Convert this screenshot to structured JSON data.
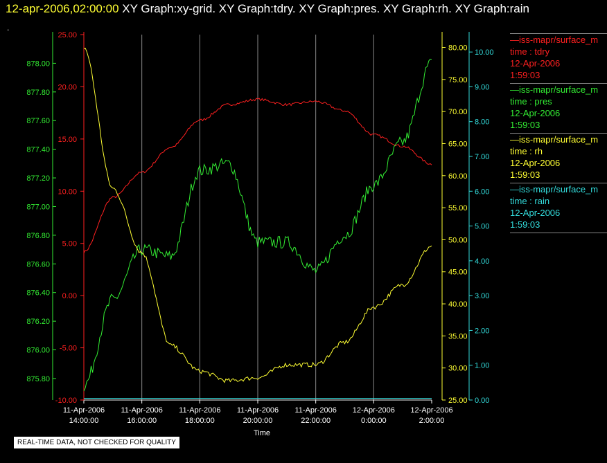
{
  "header": {
    "timestamp": "12-apr-2006,02:00:00",
    "titles": "XY Graph:xy-grid.  XY Graph:tdry.  XY Graph:pres.  XY Graph:rh.  XY Graph:rain",
    "dot": "."
  },
  "disclaimer": "REAL-TIME DATA, NOT CHECKED FOR QUALITY",
  "legend": [
    {
      "name": "iss-mapr/surface_m",
      "line2": "time : tdry",
      "date": "12-Apr-2006",
      "time": "1:59:03",
      "color": "#ff2020"
    },
    {
      "name": "iss-mapr/surface_m",
      "line2": "time : pres",
      "date": "12-Apr-2006",
      "time": "1:59:03",
      "color": "#33ee33"
    },
    {
      "name": "iss-mapr/surface_m",
      "line2": "time : rh",
      "date": "12-Apr-2006",
      "time": "1:59:03",
      "color": "#ffff33"
    },
    {
      "name": "iss-mapr/surface_m",
      "line2": "time : rain",
      "date": "12-Apr-2006",
      "time": "1:59:03",
      "color": "#33dddd"
    }
  ],
  "chart_data": {
    "type": "line",
    "xlabel": "Time",
    "x_range": [
      "11-Apr-2006 14:00:00",
      "12-Apr-2006 2:00:00"
    ],
    "x_ticks": [
      [
        "11-Apr-2006",
        "14:00:00"
      ],
      [
        "11-Apr-2006",
        "16:00:00"
      ],
      [
        "11-Apr-2006",
        "18:00:00"
      ],
      [
        "11-Apr-2006",
        "20:00:00"
      ],
      [
        "11-Apr-2006",
        "22:00:00"
      ],
      [
        "12-Apr-2006",
        "0:00:00"
      ],
      [
        "12-Apr-2006",
        "2:00:00"
      ]
    ],
    "x_hours": [
      0,
      1,
      2,
      3,
      4,
      5,
      6,
      7,
      8,
      9,
      10,
      11,
      12
    ],
    "grid": "vertical",
    "axes": {
      "tdry": {
        "range": [
          -10,
          25
        ],
        "ticks": [
          "-10.00",
          "-5.00",
          "0.00",
          "5.00",
          "10.00",
          "15.00",
          "20.00",
          "25.00"
        ],
        "color": "#ff2020"
      },
      "pres": {
        "range": [
          875.65,
          878.2
        ],
        "ticks": [
          "875.80",
          "876.00",
          "876.20",
          "876.40",
          "876.60",
          "876.80",
          "877.00",
          "877.20",
          "877.40",
          "877.60",
          "877.80",
          "878.00"
        ],
        "color": "#33ee33"
      },
      "rh": {
        "range": [
          25,
          82
        ],
        "ticks": [
          "25.00",
          "30.00",
          "35.00",
          "40.00",
          "45.00",
          "50.00",
          "55.00",
          "60.00",
          "65.00",
          "70.00",
          "75.00",
          "80.00"
        ],
        "color": "#ffff33"
      },
      "rain": {
        "range": [
          0,
          10.5
        ],
        "ticks": [
          "0.00",
          "1.00",
          "2.00",
          "3.00",
          "4.00",
          "5.00",
          "6.00",
          "7.00",
          "8.00",
          "9.00",
          "10.00"
        ],
        "color": "#33dddd"
      }
    },
    "series": [
      {
        "name": "tdry",
        "axis": "tdry",
        "color": "#ff2020",
        "values": [
          4.2,
          9.4,
          11.8,
          14.2,
          16.8,
          18.3,
          18.8,
          18.3,
          18.6,
          17.7,
          15.4,
          14.3,
          12.6
        ]
      },
      {
        "name": "pres",
        "axis": "pres",
        "color": "#33ee33",
        "values": [
          875.75,
          876.35,
          876.7,
          876.65,
          877.25,
          877.3,
          876.75,
          876.75,
          876.55,
          876.8,
          877.15,
          877.45,
          878.0
        ]
      },
      {
        "name": "rh",
        "axis": "rh",
        "color": "#ffff33",
        "values": [
          80.0,
          58.0,
          48.0,
          33.5,
          29.5,
          28.0,
          28.5,
          30.5,
          30.5,
          34.0,
          39.5,
          43.0,
          49.0
        ]
      },
      {
        "name": "rain",
        "axis": "rain",
        "color": "#33dddd",
        "values": [
          0.05,
          0.05,
          0.05,
          0.05,
          0.05,
          0.05,
          0.05,
          0.05,
          0.05,
          0.05,
          0.05,
          0.05,
          0.05
        ]
      }
    ]
  }
}
